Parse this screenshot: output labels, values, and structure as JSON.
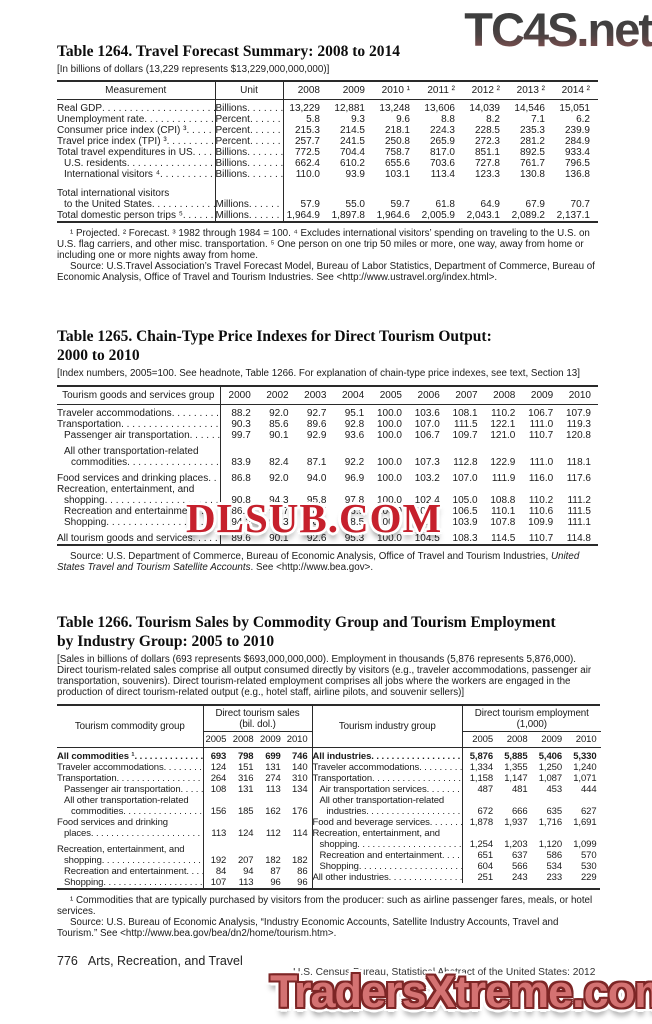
{
  "colors": {
    "text": "#1a1a1a",
    "rule": "#2a2a2a",
    "watermark_top": "#474040",
    "watermark_middle": "#c6202c",
    "watermark_bottom": "#d47272"
  },
  "watermarks": {
    "top": "TC4S.net",
    "middle": "DLSUB.COM",
    "bottom": "TradersXtreme.com"
  },
  "table1264": {
    "title": "Table 1264. Travel Forecast Summary: 2008 to 2014",
    "headnote": "[In billions of dollars (13,229 represents $13,229,000,000,000)]",
    "header": {
      "measurement": "Measurement",
      "unit": "Unit",
      "years": [
        "2008",
        "2009",
        "2010 ¹",
        "2011 ²",
        "2012 ²",
        "2013 ²",
        "2014 ²"
      ]
    },
    "rows": [
      {
        "lines": [
          "Real GDP"
        ],
        "indent": 0,
        "unit": "Billions",
        "values": [
          "13,229",
          "12,881",
          "13,248",
          "13,606",
          "14,039",
          "14,546",
          "15,051"
        ]
      },
      {
        "lines": [
          "Unemployment rate"
        ],
        "indent": 0,
        "unit": "Percent",
        "values": [
          "5.8",
          "9.3",
          "9.6",
          "8.8",
          "8.2",
          "7.1",
          "6.2"
        ]
      },
      {
        "lines": [
          "Consumer price index (CPI) ³"
        ],
        "indent": 0,
        "unit": "Percent",
        "values": [
          "215.3",
          "214.5",
          "218.1",
          "224.3",
          "228.5",
          "235.3",
          "239.9"
        ]
      },
      {
        "lines": [
          "Travel price index (TPI) ³"
        ],
        "indent": 0,
        "unit": "Percent",
        "values": [
          "257.7",
          "241.5",
          "250.8",
          "265.9",
          "272.3",
          "281.2",
          "284.9"
        ]
      },
      {
        "lines": [
          "Total travel expenditures in US"
        ],
        "indent": 0,
        "unit": "Billions",
        "values": [
          "772.5",
          "704.4",
          "758.7",
          "817.0",
          "851.1",
          "892.5",
          "933.4"
        ]
      },
      {
        "lines": [
          "U.S. residents"
        ],
        "indent": 1,
        "unit": "Billions",
        "values": [
          "662.4",
          "610.2",
          "655.6",
          "703.6",
          "727.8",
          "761.7",
          "796.5"
        ]
      },
      {
        "lines": [
          "International visitors ⁴"
        ],
        "indent": 1,
        "unit": "Billions",
        "values": [
          "110.0",
          "93.9",
          "103.1",
          "113.4",
          "123.3",
          "130.8",
          "136.8"
        ]
      },
      {
        "lines": [
          "Total international visitors",
          "to the United States"
        ],
        "indent": 0,
        "unit": "Millions",
        "gap": true,
        "values": [
          "57.9",
          "55.0",
          "59.7",
          "61.8",
          "64.9",
          "67.9",
          "70.7"
        ]
      },
      {
        "lines": [
          "Total domestic person trips ⁵"
        ],
        "indent": 0,
        "unit": "Millions",
        "values": [
          "1,964.9",
          "1,897.8",
          "1,964.6",
          "2,005.9",
          "2,043.1",
          "2,089.2",
          "2,137.1"
        ]
      }
    ],
    "footnote": "¹ Projected. ² Forecast. ³ 1982 through 1984 = 100. ⁴ Excludes international visitors’ spending on traveling to the U.S. on U.S. flag carriers, and other misc. transportation. ⁵ One person on one trip 50 miles or more, one way, away from home or including one or more nights away from home.",
    "source": "Source: U.S.Travel Association’s Travel Forecast Model, Bureau of Labor Statistics, Department of Commerce, Bureau of Economic Analysis, Office of Travel and Tourism Industries. See <http://www.ustravel.org/index.html>."
  },
  "table1265": {
    "title1": "Table 1265. Chain-Type Price Indexes for Direct Tourism Output:",
    "title2": "2000 to 2010",
    "headnote": "[Index numbers, 2005=100. See headnote, Table 1266. For explanation of chain-type price indexes, see text, Section 13]",
    "header": {
      "group": "Tourism goods and services group",
      "years": [
        "2000",
        "2002",
        "2003",
        "2004",
        "2005",
        "2006",
        "2007",
        "2008",
        "2009",
        "2010"
      ]
    },
    "rows": [
      {
        "lines": [
          "Traveler accommodations"
        ],
        "indent": 0,
        "values": [
          "88.2",
          "92.0",
          "92.7",
          "95.1",
          "100.0",
          "103.6",
          "108.1",
          "110.2",
          "106.7",
          "107.9"
        ]
      },
      {
        "lines": [
          "Transportation"
        ],
        "indent": 0,
        "values": [
          "90.3",
          "85.6",
          "89.6",
          "92.8",
          "100.0",
          "107.0",
          "111.5",
          "122.1",
          "111.0",
          "119.3"
        ]
      },
      {
        "lines": [
          "Passenger air transportation"
        ],
        "indent": 1,
        "values": [
          "99.7",
          "90.1",
          "92.9",
          "93.6",
          "100.0",
          "106.7",
          "109.7",
          "121.0",
          "110.7",
          "120.8"
        ]
      },
      {
        "lines": [
          "All other transportation-related",
          "commodities"
        ],
        "indent": 1,
        "gap": true,
        "values": [
          "83.9",
          "82.4",
          "87.1",
          "92.2",
          "100.0",
          "107.3",
          "112.8",
          "122.9",
          "111.0",
          "118.1"
        ]
      },
      {
        "lines": [
          "Food services and drinking places"
        ],
        "indent": 0,
        "gap": true,
        "values": [
          "86.8",
          "92.0",
          "94.0",
          "96.9",
          "100.0",
          "103.2",
          "107.0",
          "111.9",
          "116.0",
          "117.6"
        ]
      },
      {
        "lines": [
          "Recreation, entertainment, and",
          "shopping"
        ],
        "indent": 0,
        "values": [
          "90.8",
          "94.3",
          "95.8",
          "97.8",
          "100.0",
          "102.4",
          "105.0",
          "108.8",
          "110.2",
          "111.2"
        ]
      },
      {
        "lines": [
          "Recreation and entertainment"
        ],
        "indent": 1,
        "values": [
          "86.6",
          "91.7",
          "94.5",
          "96.9",
          "100.0",
          "103.2",
          "106.5",
          "110.1",
          "110.6",
          "111.5"
        ]
      },
      {
        "lines": [
          "Shopping"
        ],
        "indent": 1,
        "values": [
          "94.2",
          "96.3",
          "96.8",
          "98.5",
          "100.0",
          "101.7",
          "103.9",
          "107.8",
          "109.9",
          "111.1"
        ]
      },
      {
        "lines": [
          "All tourism goods and services"
        ],
        "indent": 0,
        "gap": true,
        "values": [
          "89.6",
          "90.1",
          "92.6",
          "95.3",
          "100.0",
          "104.5",
          "108.3",
          "114.5",
          "110.7",
          "114.8"
        ]
      }
    ],
    "source_pre": "Source: U.S. Department of Commerce, Bureau of Economic Analysis,  Office of Travel and Tourism Industries, ",
    "source_italic": "United States Travel and Tourism Satellite Accounts",
    "source_post": ". See <http://www.bea.gov>."
  },
  "table1266": {
    "title1": "Table 1266. Tourism Sales by Commodity Group and Tourism Employment",
    "title2": "by Industry Group: 2005 to 2010",
    "headnote": "[Sales in billions of dollars (693 represents $693,000,000,000). Employment in thousands (5,876 represents 5,876,000). Direct tourism-related sales comprise all output consumed directly by visitors (e.g., traveler accommodations, passenger air transportation, souvenirs). Direct tourism-related employment comprises all jobs where the workers are engaged in the production of direct tourism-related output (e.g., hotel staff, airline pilots, and souvenir sellers)]",
    "left": {
      "group_label": "Tourism commodity group",
      "span_title": "Direct tourism sales",
      "span_sub": "(bil. dol.)",
      "years": [
        "2005",
        "2008",
        "2009",
        "2010"
      ],
      "rows": [
        {
          "lines": [
            "All commodities ¹"
          ],
          "indent": 0,
          "bold": true,
          "values": [
            "693",
            "798",
            "699",
            "746"
          ]
        },
        {
          "lines": [
            "Traveler accommodations"
          ],
          "indent": 0,
          "values": [
            "124",
            "151",
            "131",
            "140"
          ]
        },
        {
          "lines": [
            "Transportation"
          ],
          "indent": 0,
          "values": [
            "264",
            "316",
            "274",
            "310"
          ]
        },
        {
          "lines": [
            "Passenger air transportation"
          ],
          "indent": 1,
          "values": [
            "108",
            "131",
            "113",
            "134"
          ]
        },
        {
          "lines": [
            "All other transportation-related",
            "commodities"
          ],
          "indent": 1,
          "values": [
            "156",
            "185",
            "162",
            "176"
          ]
        },
        {
          "lines": [
            "Food services and drinking",
            "places"
          ],
          "indent": 0,
          "values": [
            "113",
            "124",
            "112",
            "114"
          ]
        },
        {
          "lines": [
            "Recreation, entertainment, and",
            "shopping"
          ],
          "indent": 0,
          "gap": true,
          "values": [
            "192",
            "207",
            "182",
            "182"
          ]
        },
        {
          "lines": [
            "Recreation and entertainment"
          ],
          "indent": 1,
          "values": [
            "84",
            "94",
            "87",
            "86"
          ]
        },
        {
          "lines": [
            "Shopping"
          ],
          "indent": 1,
          "values": [
            "107",
            "113",
            "96",
            "96"
          ]
        }
      ]
    },
    "right": {
      "group_label": "Tourism industry group",
      "span_title": "Direct tourism employment",
      "span_sub": "(1,000)",
      "years": [
        "2005",
        "2008",
        "2009",
        "2010"
      ],
      "rows": [
        {
          "lines": [
            "All industries"
          ],
          "indent": 0,
          "bold": true,
          "values": [
            "5,876",
            "5,885",
            "5,406",
            "5,330"
          ]
        },
        {
          "lines": [
            "Traveler accommodations"
          ],
          "indent": 0,
          "values": [
            "1,334",
            "1,355",
            "1,250",
            "1,240"
          ]
        },
        {
          "lines": [
            "Transportation"
          ],
          "indent": 0,
          "values": [
            "1,158",
            "1,147",
            "1,087",
            "1,071"
          ]
        },
        {
          "lines": [
            "Air transportation services"
          ],
          "indent": 1,
          "values": [
            "487",
            "481",
            "453",
            "444"
          ]
        },
        {
          "lines": [
            "All other transportation-related",
            "industries"
          ],
          "indent": 1,
          "values": [
            "672",
            "666",
            "635",
            "627"
          ]
        },
        {
          "lines": [
            "Food and beverage services"
          ],
          "indent": 0,
          "values": [
            "1,878",
            "1,937",
            "1,716",
            "1,691"
          ]
        },
        {
          "lines": [
            "Recreation, entertainment, and",
            "shopping"
          ],
          "indent": 0,
          "values": [
            "1,254",
            "1,203",
            "1,120",
            "1,099"
          ]
        },
        {
          "lines": [
            "Recreation and entertainment"
          ],
          "indent": 1,
          "values": [
            "651",
            "637",
            "586",
            "570"
          ]
        },
        {
          "lines": [
            "Shopping"
          ],
          "indent": 1,
          "values": [
            "604",
            "566",
            "534",
            "530"
          ]
        },
        {
          "lines": [
            "All other industries"
          ],
          "indent": 0,
          "values": [
            "251",
            "243",
            "233",
            "229"
          ]
        }
      ]
    },
    "footnote": "¹ Commodities that are typically purchased by visitors from the producer: such as airline passenger fares, meals, or hotel services.",
    "source": "Source: U.S. Bureau of Economic Analysis, “Industry Economic  Accounts, Satellite Industry Accounts, Travel and Tourism.” See <http://www.bea.gov/bea/dn2/home/tourism.htm>."
  },
  "footer": {
    "page": "776",
    "section": "Arts, Recreation, and Travel",
    "credit": "U.S. Census Bureau, Statistical Abstract of the United States: 2012"
  }
}
